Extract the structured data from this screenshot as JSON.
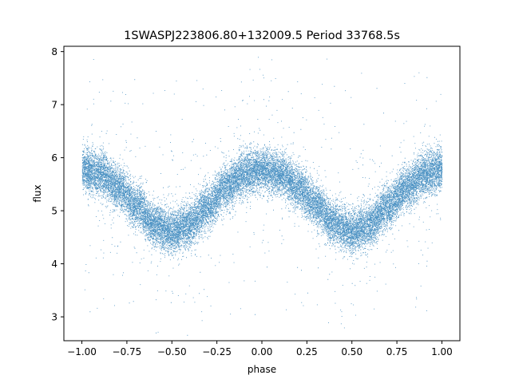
{
  "chart_data": {
    "type": "scatter",
    "title": "1SWASPJ223806.80+132009.5 Period 33768.5s",
    "xlabel": "phase",
    "ylabel": "flux",
    "xlim": [
      -1.1,
      1.1
    ],
    "ylim": [
      2.55,
      8.1
    ],
    "xticks": [
      -1.0,
      -0.75,
      -0.5,
      -0.25,
      0.0,
      0.25,
      0.5,
      0.75,
      1.0
    ],
    "xtick_labels": [
      "−1.00",
      "−0.75",
      "−0.50",
      "−0.25",
      "0.00",
      "0.25",
      "0.50",
      "0.75",
      "1.00"
    ],
    "yticks": [
      3,
      4,
      5,
      6,
      7,
      8
    ],
    "ytick_labels": [
      "3",
      "4",
      "5",
      "6",
      "7",
      "8"
    ],
    "grid": false,
    "legend": "none",
    "point_color": "#1f77b4",
    "series": [
      {
        "name": "",
        "curve": {
          "phase": [
            -1.0,
            -0.9,
            -0.8,
            -0.7,
            -0.6,
            -0.5,
            -0.4,
            -0.3,
            -0.2,
            -0.1,
            0.0,
            0.1,
            0.2,
            0.3,
            0.4,
            0.5,
            0.6,
            0.7,
            0.8,
            0.9,
            1.0
          ],
          "flux": [
            5.8,
            5.7,
            5.45,
            5.1,
            4.75,
            4.6,
            4.75,
            5.1,
            5.45,
            5.7,
            5.8,
            5.7,
            5.45,
            5.1,
            4.75,
            4.6,
            4.75,
            5.1,
            5.45,
            5.7,
            5.8
          ]
        },
        "scatter_sd": 0.2,
        "point_count": 24000
      }
    ]
  }
}
